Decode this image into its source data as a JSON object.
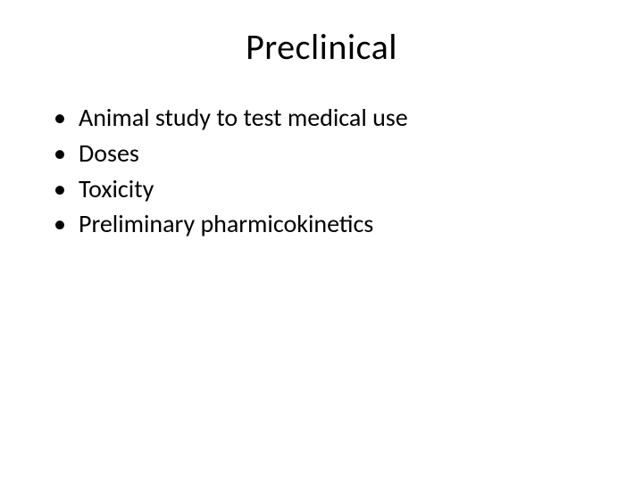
{
  "slide": {
    "title": "Preclinical",
    "bullets": [
      "Animal study to test medical use",
      "Doses",
      "Toxicity",
      "Preliminary pharmicokinetics"
    ],
    "title_fontsize": 40,
    "bullet_fontsize": 28,
    "text_color": "#000000",
    "background_color": "#ffffff"
  }
}
